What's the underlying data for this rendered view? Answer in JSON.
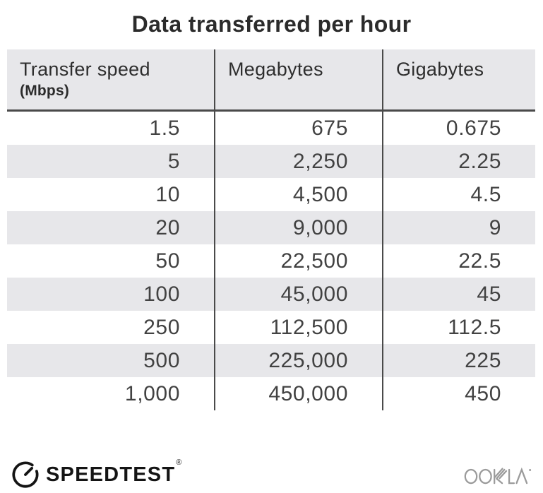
{
  "title": "Data transferred per hour",
  "table": {
    "columns": [
      {
        "label": "Transfer speed",
        "sublabel": "(Mbps)"
      },
      {
        "label": "Megabytes",
        "sublabel": ""
      },
      {
        "label": "Gigabytes",
        "sublabel": ""
      }
    ],
    "rows": [
      [
        "1.5",
        "675",
        "0.675"
      ],
      [
        "5",
        "2,250",
        "2.25"
      ],
      [
        "10",
        "4,500",
        "4.5"
      ],
      [
        "20",
        "9,000",
        "9"
      ],
      [
        "50",
        "22,500",
        "22.5"
      ],
      [
        "100",
        "45,000",
        "45"
      ],
      [
        "250",
        "112,500",
        "112.5"
      ],
      [
        "500",
        "225,000",
        "225"
      ],
      [
        "1,000",
        "450,000",
        "450"
      ]
    ]
  },
  "chart_data": {
    "type": "table",
    "title": "Data transferred per hour",
    "columns": [
      "Transfer speed (Mbps)",
      "Megabytes",
      "Gigabytes"
    ],
    "rows": [
      [
        1.5,
        675,
        0.675
      ],
      [
        5,
        2250,
        2.25
      ],
      [
        10,
        4500,
        4.5
      ],
      [
        20,
        9000,
        9
      ],
      [
        50,
        22500,
        22.5
      ],
      [
        100,
        45000,
        45
      ],
      [
        250,
        112500,
        112.5
      ],
      [
        500,
        225000,
        225
      ],
      [
        1000,
        450000,
        450
      ]
    ]
  },
  "footer": {
    "speedtest_label": "SPEEDTEST",
    "speedtest_trademark": "®",
    "ookla_label": "OOKLA",
    "ookla_trademark": "®"
  },
  "colors": {
    "header_bg": "#e7e7ea",
    "row_alt_bg": "#e7e7ea",
    "divider": "#4a4a4a",
    "title_text": "#2b2b2b",
    "cell_text": "#424242",
    "logo_black": "#141414",
    "ookla_gray": "#9b9b9b"
  }
}
